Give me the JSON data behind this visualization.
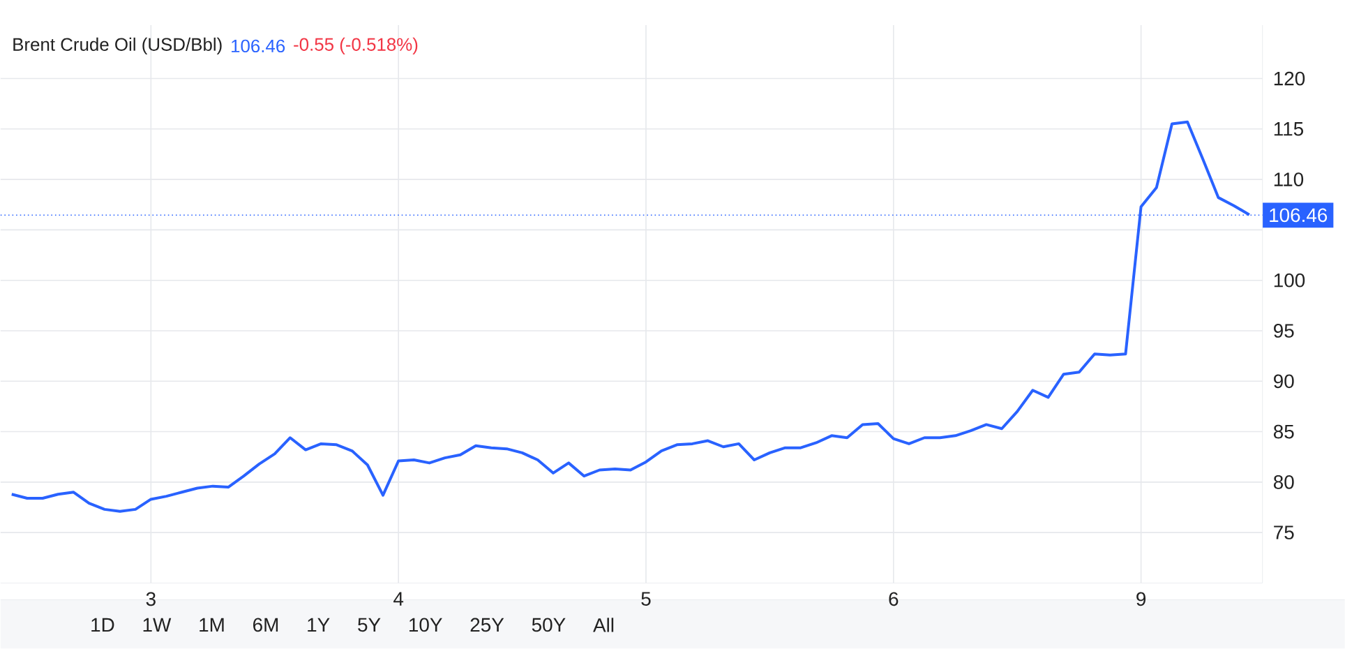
{
  "chart_data": {
    "type": "line",
    "title": "Brent Crude Oil (USD/Bbl)",
    "annotations": [
      "106.46",
      "-0.55 (-0.518%)",
      "1D",
      "1W",
      "1M",
      "6M",
      "1Y",
      "5Y",
      "10Y",
      "25Y",
      "50Y",
      "All"
    ],
    "color": "#2962ff",
    "grid": true,
    "ylim": [
      70,
      125.3
    ],
    "yticks": [
      75,
      80,
      85,
      90,
      95,
      100,
      {
        "value": 105,
        "label": null
      },
      110,
      115,
      120
    ],
    "ref_lines": [
      {
        "axis": "y",
        "value": 106.46,
        "label": "106.46",
        "color": "#2962ff",
        "line_style": "dotted"
      }
    ],
    "categories": [
      null,
      null,
      null,
      null,
      null,
      null,
      null,
      null,
      null,
      "3",
      null,
      null,
      null,
      null,
      null,
      null,
      null,
      null,
      null,
      null,
      null,
      null,
      null,
      null,
      null,
      "4",
      null,
      null,
      null,
      null,
      null,
      null,
      null,
      null,
      null,
      null,
      null,
      null,
      null,
      null,
      null,
      "5",
      null,
      null,
      null,
      null,
      null,
      null,
      null,
      null,
      null,
      null,
      null,
      null,
      null,
      null,
      null,
      "6",
      null,
      null,
      null,
      null,
      null,
      null,
      null,
      null,
      null,
      null,
      null,
      null,
      null,
      null,
      null,
      "9",
      null,
      null,
      null,
      null,
      null,
      null,
      null
    ],
    "values": [
      78.8,
      78.4,
      78.4,
      78.8,
      79.0,
      77.9,
      77.3,
      77.1,
      77.3,
      78.3,
      78.6,
      79.0,
      79.4,
      79.6,
      79.5,
      80.6,
      81.8,
      82.8,
      84.4,
      83.2,
      83.8,
      83.7,
      83.1,
      81.7,
      78.7,
      82.1,
      82.2,
      81.9,
      82.4,
      82.7,
      83.6,
      83.4,
      83.3,
      82.9,
      82.2,
      80.9,
      81.9,
      80.6,
      81.2,
      81.3,
      81.2,
      82.0,
      83.1,
      83.7,
      83.8,
      84.1,
      83.5,
      83.8,
      82.2,
      82.9,
      83.4,
      83.4,
      83.9,
      84.6,
      84.4,
      85.7,
      85.8,
      84.3,
      83.8,
      84.4,
      84.4,
      84.6,
      85.1,
      85.7,
      85.3,
      87.0,
      89.1,
      88.4,
      90.7,
      90.9,
      92.7,
      92.6,
      92.7,
      107.3,
      109.2,
      115.5,
      115.7,
      112.0,
      108.2,
      107.4,
      106.5
    ]
  }
}
